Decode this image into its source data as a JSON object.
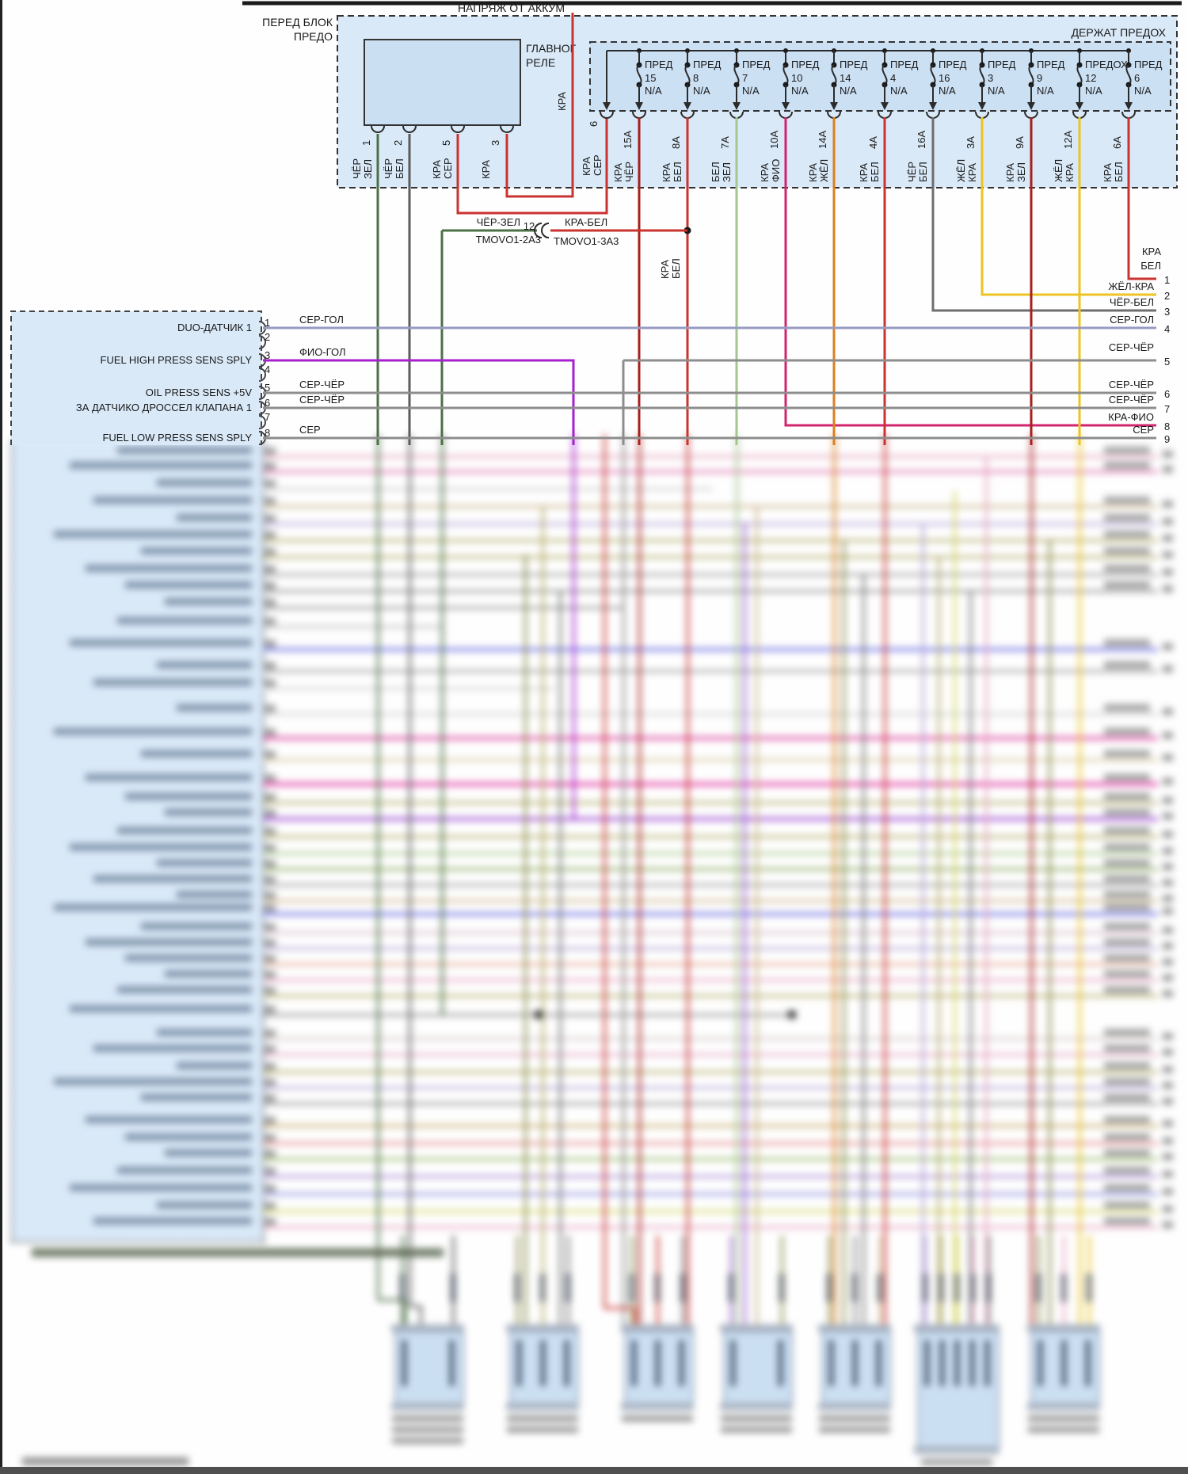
{
  "diagram": {
    "battery_feed_label": "НАПРЯЖ ОТ АККУМ",
    "front_fuse_block": {
      "line1": "ПЕРЕД БЛОК",
      "line2": "ПРЕДО"
    },
    "main_relay": {
      "line1": "ГЛАВНОГ",
      "line2": "РЕЛЕ"
    },
    "fuse_holder_label": "ДЕРЖАТ ПРЕДОХ",
    "bus_wire_label": "КРА"
  },
  "relay_pins": [
    {
      "pin": "1",
      "wire_lines": [
        "ЧЁР",
        "ЗЕЛ"
      ],
      "color": "#4c7046"
    },
    {
      "pin": "2",
      "wire_lines": [
        "ЧЁР",
        "БЕЛ"
      ],
      "color": "#5c5c5c"
    },
    {
      "pin": "5",
      "wire_lines": [
        "КРА",
        "СЕР"
      ],
      "color": "#c93330"
    },
    {
      "pin": "3",
      "wire_lines": [
        "КРА"
      ],
      "color": "#c93330"
    }
  ],
  "fuse_feed_pin": {
    "pin": "6",
    "wire_lines": [
      "КРА",
      "СЕР"
    ],
    "color": "#c93330"
  },
  "fuses": [
    {
      "name": "ПРЕД",
      "number": "15",
      "rating": "N/A",
      "output_pin": "15A",
      "wire_lines": [
        "КРА",
        "ЧЁР"
      ],
      "color": "#a8201d"
    },
    {
      "name": "ПРЕД",
      "number": "8",
      "rating": "N/A",
      "output_pin": "8A",
      "wire_lines": [
        "КРА",
        "БЕЛ"
      ],
      "color": "#c93330"
    },
    {
      "name": "ПРЕД",
      "number": "7",
      "rating": "N/A",
      "output_pin": "7A",
      "wire_lines": [
        "БЕЛ",
        "ЗЕЛ"
      ],
      "color": "#a4c690"
    },
    {
      "name": "ПРЕД",
      "number": "10",
      "rating": "N/A",
      "output_pin": "10A",
      "wire_lines": [
        "КРА",
        "ФИО"
      ],
      "color": "#d2246e"
    },
    {
      "name": "ПРЕД",
      "number": "14",
      "rating": "N/A",
      "output_pin": "14A",
      "wire_lines": [
        "КРА",
        "ЖЁЛ"
      ],
      "color": "#dc7f1e"
    },
    {
      "name": "ПРЕД",
      "number": "4",
      "rating": "N/A",
      "output_pin": "4A",
      "wire_lines": [
        "КРА",
        "БЕЛ"
      ],
      "color": "#c93330"
    },
    {
      "name": "ПРЕД",
      "number": "16",
      "rating": "N/A",
      "output_pin": "16A",
      "wire_lines": [
        "ЧЁР",
        "БЕЛ"
      ],
      "color": "#6e6e6e"
    },
    {
      "name": "ПРЕД",
      "number": "3",
      "rating": "N/A",
      "output_pin": "3A",
      "wire_lines": [
        "ЖЁЛ",
        "КРА"
      ],
      "color": "#edc421"
    },
    {
      "name": "ПРЕД",
      "number": "9",
      "rating": "N/A",
      "output_pin": "9A",
      "wire_lines": [
        "КРА",
        "ЗЕЛ"
      ],
      "color": "#a8201d"
    },
    {
      "name": "ПРЕДОХ",
      "number": "12",
      "rating": "N/A",
      "output_pin": "12A",
      "wire_lines": [
        "ЖЁЛ",
        "КРА"
      ],
      "color": "#edc421"
    },
    {
      "name": "ПРЕД",
      "number": "6",
      "rating": "N/A",
      "output_pin": "6A",
      "wire_lines": [
        "КРА",
        "БЕЛ"
      ],
      "color": "#c93330"
    }
  ],
  "splice": {
    "left_wire": "ЧЁР-ЗЕЛ",
    "pin": "12",
    "right_wire": "КРА-БЕЛ",
    "left_connector": "TMOVO1-2A3",
    "right_connector": "TMOVO1-3A3",
    "branch_lines": [
      "КРА",
      "БЕЛ"
    ]
  },
  "left_connector": {
    "pins": [
      {
        "pin": "1",
        "label": "DUO-ДАТЧИК 1",
        "wire": "СЕР-ГОЛ",
        "color": "#989bc2"
      },
      {
        "pin": "2",
        "label": "",
        "wire": "",
        "color": ""
      },
      {
        "pin": "3",
        "label": "FUEL HIGH PRESS SENS SPLY",
        "wire": "ФИО-ГОЛ",
        "color": "#a520cf"
      },
      {
        "pin": "4",
        "label": "",
        "wire": "",
        "color": ""
      },
      {
        "pin": "5",
        "label": "OIL PRESS SENS +5V",
        "wire": "СЕР-ЧЁР",
        "color": "#8d8d8d"
      },
      {
        "pin": "6",
        "label": "ЗА ДАТЧИКО ДРОССЕЛ КЛАПАНА 1",
        "wire": "СЕР-ЧЁР",
        "color": "#8d8d8d"
      },
      {
        "pin": "7",
        "label": "",
        "wire": "",
        "color": ""
      },
      {
        "pin": "8",
        "label": "FUEL LOW PRESS SENS SPLY",
        "wire": "СЕР",
        "color": "#8d8d8d"
      }
    ]
  },
  "right_connector": {
    "pins": [
      {
        "pin": "1",
        "wire_lines": [
          "КРА",
          "БЕЛ"
        ],
        "wire": "",
        "color": "#c93330"
      },
      {
        "pin": "2",
        "wire": "ЖЁЛ-КРА",
        "color": "#edc421"
      },
      {
        "pin": "3",
        "wire": "ЧЁР-БЕЛ",
        "color": "#6e6e6e"
      },
      {
        "pin": "4",
        "wire": "СЕР-ГОЛ",
        "color": "#989bc2"
      },
      {
        "pin": "5",
        "wire": "СЕР-ЧЁР",
        "color": "#8d8d8d"
      },
      {
        "pin": "6",
        "wire": "СЕР-ЧЁР",
        "color": "#8d8d8d"
      },
      {
        "pin": "7",
        "wire": "СЕР-ЧЁР",
        "color": "#8d8d8d"
      },
      {
        "pin": "8",
        "wire": "КРА-ФИО",
        "color": "#d2246e"
      },
      {
        "pin": "9",
        "wire": "СЕР",
        "color": "#8d8d8d"
      }
    ]
  },
  "colors": {
    "box_fill": "#d9e9f8",
    "fusebox_fill": "#cce0f4",
    "relay_fill": "#cbdff2",
    "line_dark": "#2b2b2b",
    "red": "#c93330",
    "dark_red": "#a8201d",
    "green": "#4c7046",
    "pale_green": "#a4c690",
    "crimson": "#d2246e",
    "orange": "#dc7f1e",
    "yellow": "#edc421",
    "gray": "#8d8d8d",
    "slate": "#989bc2",
    "purple": "#a520cf"
  }
}
